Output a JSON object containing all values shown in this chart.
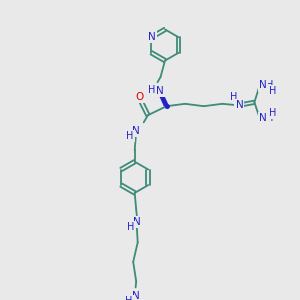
{
  "bg_color": "#e9e9e9",
  "bond_color": "#3d8b78",
  "nitrogen_color": "#2222cc",
  "oxygen_color": "#dd0000",
  "font_size": 7.5,
  "lw": 1.3,
  "figsize": [
    3.0,
    3.0
  ],
  "dpi": 100,
  "xlim": [
    0,
    10
  ],
  "ylim": [
    0,
    10
  ]
}
